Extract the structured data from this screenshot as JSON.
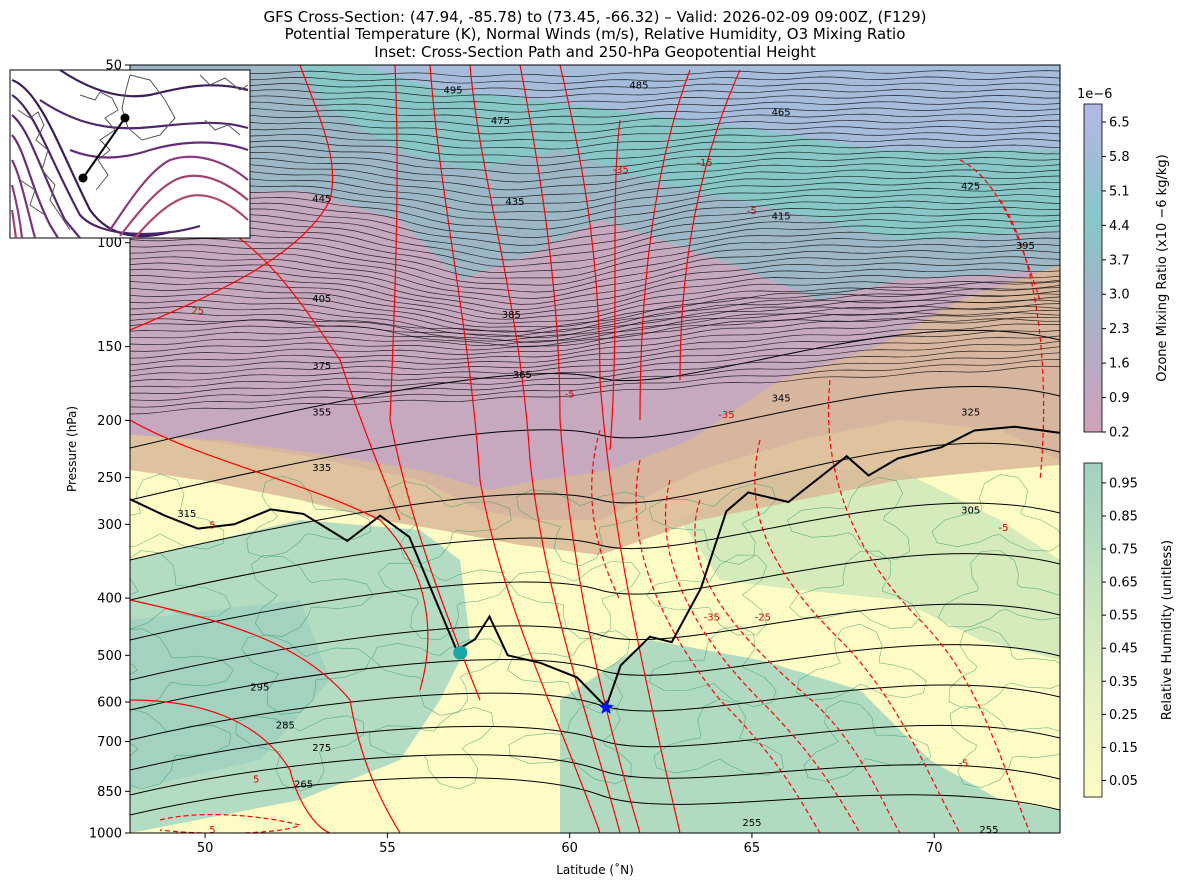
{
  "titles": [
    "GFS Cross-Section: (47.94, -85.78) to (73.45, -66.32) – Valid: 2026-02-09 09:00Z, (F129)",
    "Potential Temperature (K), Normal Winds (m/s), Relative Humidity, O3 Mixing Ratio",
    "Inset: Cross-Section Path and 250-hPa Geopotential Height"
  ],
  "chart_data": {
    "type": "cross-section",
    "xlabel": "Latitude (˚N)",
    "ylabel": "Pressure (hPa)",
    "xlim": [
      47.94,
      73.45
    ],
    "ylim": [
      1000,
      50
    ],
    "y_scale": "log",
    "x_ticks": [
      50,
      55,
      60,
      65,
      70
    ],
    "y_ticks": [
      1000,
      850,
      700,
      600,
      500,
      400,
      300,
      250,
      200,
      150,
      100,
      50
    ],
    "ozone_colorbar": {
      "label": "Ozone Mixing Ratio (x10 −6 kg/kg)",
      "exponent": "1e−6",
      "ticks": [
        "0.2",
        "0.9",
        "1.6",
        "2.3",
        "3.0",
        "3.7",
        "4.4",
        "5.1",
        "5.8",
        "6.5"
      ],
      "colors": [
        "#cfa3b8",
        "#b9a9c4",
        "#9cb8c6",
        "#86c8c8",
        "#a2bcd8",
        "#b3b8e6"
      ]
    },
    "rh_colorbar": {
      "label": "Relative Humidity (unitless)",
      "ticks": [
        "0.05",
        "0.15",
        "0.25",
        "0.35",
        "0.45",
        "0.55",
        "0.65",
        "0.75",
        "0.85",
        "0.95"
      ],
      "colors": [
        "#fdfcc4",
        "#e6f2c0",
        "#c8e6bd",
        "#b1dbc0",
        "#a1d0c0"
      ]
    },
    "theta_labels": [
      {
        "text": "495",
        "lat": 56.8,
        "p": 55
      },
      {
        "text": "485",
        "lat": 61.9,
        "p": 54
      },
      {
        "text": "475",
        "lat": 58.1,
        "p": 62
      },
      {
        "text": "465",
        "lat": 65.8,
        "p": 60
      },
      {
        "text": "445",
        "lat": 53.2,
        "p": 84
      },
      {
        "text": "435",
        "lat": 58.5,
        "p": 85
      },
      {
        "text": "425",
        "lat": 71.0,
        "p": 80
      },
      {
        "text": "415",
        "lat": 65.8,
        "p": 90
      },
      {
        "text": "405",
        "lat": 53.2,
        "p": 124
      },
      {
        "text": "395",
        "lat": 72.5,
        "p": 101
      },
      {
        "text": "385",
        "lat": 58.4,
        "p": 132
      },
      {
        "text": "375",
        "lat": 53.2,
        "p": 161
      },
      {
        "text": "365",
        "lat": 58.7,
        "p": 167
      },
      {
        "text": "355",
        "lat": 53.2,
        "p": 193
      },
      {
        "text": "345",
        "lat": 65.8,
        "p": 183
      },
      {
        "text": "335",
        "lat": 53.2,
        "p": 240
      },
      {
        "text": "325",
        "lat": 71.0,
        "p": 193
      },
      {
        "text": "315",
        "lat": 49.5,
        "p": 287
      },
      {
        "text": "305",
        "lat": 71.0,
        "p": 283
      },
      {
        "text": "295",
        "lat": 51.5,
        "p": 565
      },
      {
        "text": "285",
        "lat": 52.2,
        "p": 655
      },
      {
        "text": "275",
        "lat": 53.2,
        "p": 715
      },
      {
        "text": "265",
        "lat": 52.7,
        "p": 824
      },
      {
        "text": "255",
        "lat": 65.0,
        "p": 958
      },
      {
        "text": "255",
        "lat": 71.5,
        "p": 985
      }
    ],
    "wind_labels": [
      {
        "text": "5",
        "lat": 50.2,
        "p": 300
      },
      {
        "text": "5",
        "lat": 51.4,
        "p": 808
      },
      {
        "text": "5",
        "lat": 50.2,
        "p": 985
      },
      {
        "text": "-5",
        "lat": 60.0,
        "p": 180
      },
      {
        "text": "-15",
        "lat": 63.7,
        "p": 73
      },
      {
        "text": "-35",
        "lat": 61.4,
        "p": 75
      },
      {
        "text": "-5",
        "lat": 65.0,
        "p": 88
      },
      {
        "text": "-35",
        "lat": 64.3,
        "p": 195
      },
      {
        "text": "-35",
        "lat": 63.9,
        "p": 430
      },
      {
        "text": "-25",
        "lat": 65.3,
        "p": 430
      },
      {
        "text": "-5",
        "lat": 71.9,
        "p": 303
      },
      {
        "text": "-5",
        "lat": 70.8,
        "p": 760
      },
      {
        "text": "25",
        "lat": 49.8,
        "p": 130
      }
    ],
    "dynamic_tropopause": [
      [
        47.94,
        272
      ],
      [
        48.9,
        290
      ],
      [
        49.8,
        305
      ],
      [
        50.8,
        300
      ],
      [
        51.8,
        283
      ],
      [
        52.7,
        288
      ],
      [
        53.9,
        320
      ],
      [
        54.8,
        290
      ],
      [
        55.6,
        315
      ],
      [
        56.3,
        400
      ],
      [
        56.9,
        490
      ],
      [
        57.4,
        470
      ],
      [
        57.8,
        430
      ],
      [
        58.3,
        500
      ],
      [
        59.2,
        515
      ],
      [
        60.2,
        545
      ],
      [
        61.0,
        612
      ],
      [
        61.4,
        520
      ],
      [
        62.2,
        465
      ],
      [
        62.8,
        475
      ],
      [
        63.6,
        385
      ],
      [
        64.3,
        285
      ],
      [
        64.9,
        265
      ],
      [
        66.0,
        275
      ],
      [
        67.6,
        230
      ],
      [
        68.2,
        248
      ],
      [
        69.0,
        232
      ],
      [
        70.2,
        222
      ],
      [
        71.1,
        208
      ],
      [
        72.2,
        205
      ],
      [
        73.45,
        210
      ]
    ],
    "markers": [
      {
        "name": "start-marker",
        "lat": 57.0,
        "p": 495,
        "shape": "circle",
        "color": "#1aa6a6"
      },
      {
        "name": "end-marker",
        "lat": 61.0,
        "p": 613,
        "shape": "star",
        "color": "#0010ff"
      }
    ]
  }
}
